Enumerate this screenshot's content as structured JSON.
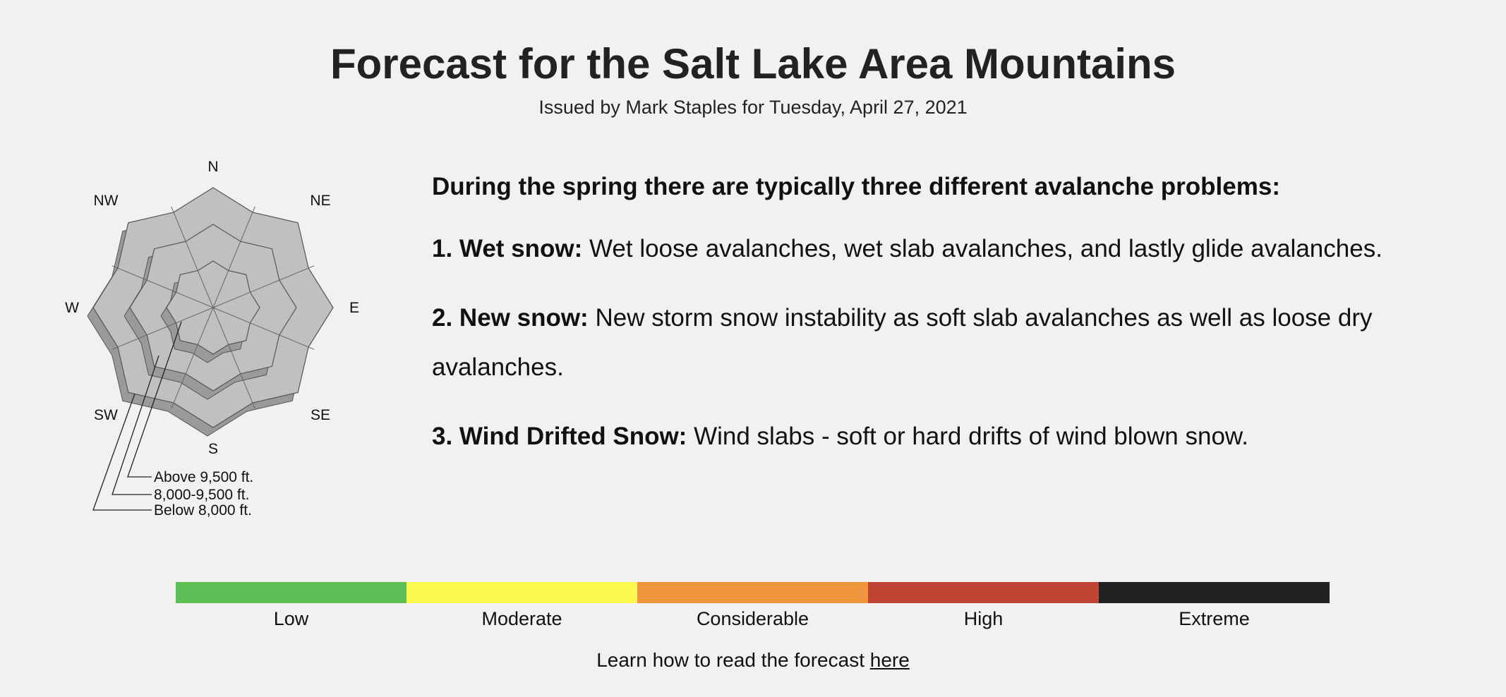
{
  "header": {
    "title": "Forecast for the Salt Lake Area Mountains",
    "subtitle": "Issued by Mark Staples for Tuesday, April 27, 2021"
  },
  "rose": {
    "directions": [
      "N",
      "NE",
      "E",
      "SE",
      "S",
      "SW",
      "W",
      "NW"
    ],
    "elevations": [
      "Above 9,500 ft.",
      "8,000-9,500 ft.",
      "Below 8,000 ft."
    ]
  },
  "content": {
    "heading": "During the spring there are typically three different avalanche problems:",
    "items": [
      {
        "label": "1. Wet snow:",
        "text": "Wet loose avalanches, wet slab avalanches, and lastly glide avalanches."
      },
      {
        "label": "2. New snow:",
        "text": "New storm snow instability as soft slab avalanches as well as loose dry avalanches."
      },
      {
        "label": "3. Wind Drifted Snow:",
        "text": "Wind slabs - soft or hard drifts of wind blown snow."
      }
    ]
  },
  "danger_scale": [
    {
      "label": "Low",
      "color": "#5bbf55"
    },
    {
      "label": "Moderate",
      "color": "#fbf94f"
    },
    {
      "label": "Considerable",
      "color": "#f0963c"
    },
    {
      "label": "High",
      "color": "#c04434"
    },
    {
      "label": "Extreme",
      "color": "#222222"
    }
  ],
  "footer": {
    "text": "Learn how to read the forecast",
    "link": "here"
  }
}
